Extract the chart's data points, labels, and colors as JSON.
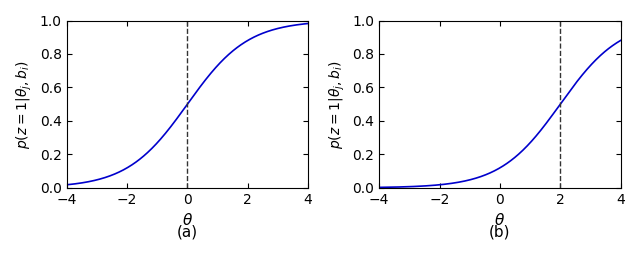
{
  "xlim": [
    -4,
    4
  ],
  "ylim": [
    0,
    1
  ],
  "xticks": [
    -4,
    -2,
    0,
    2,
    4
  ],
  "yticks": [
    0,
    0.2,
    0.4,
    0.6,
    0.8,
    1.0
  ],
  "line_color": "#0000cc",
  "dashed_color": "#333333",
  "subplot_a": {
    "b": 0,
    "vline_x": 0,
    "caption": "(a)"
  },
  "subplot_b": {
    "b": 2,
    "vline_x": 2,
    "caption": "(b)"
  },
  "xlabel": "$\\theta$",
  "ylabel": "$p(z=1|\\theta_j, b_i)$",
  "figsize": [
    6.4,
    2.79
  ],
  "dpi": 100
}
